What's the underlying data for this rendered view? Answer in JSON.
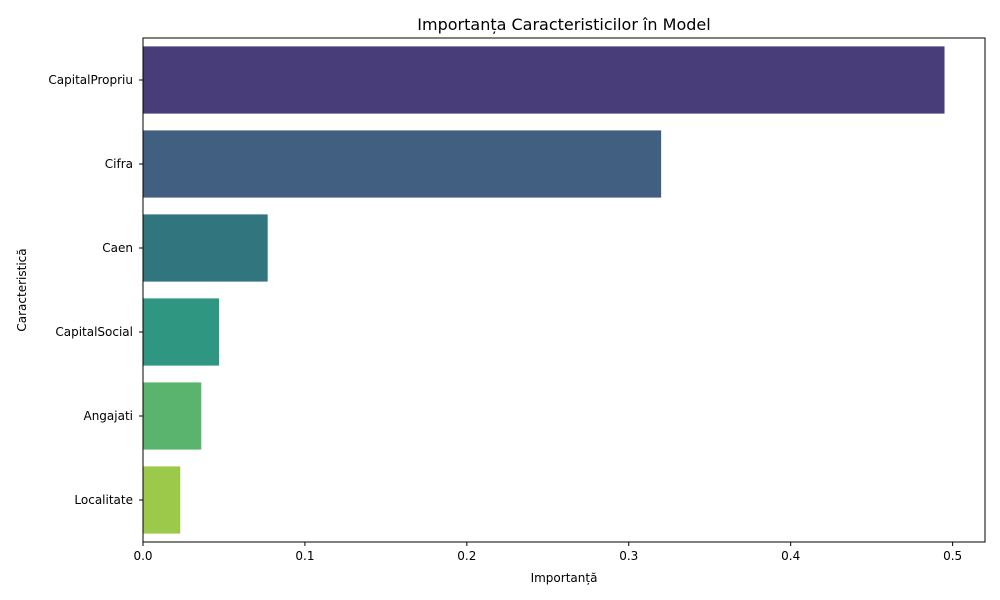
{
  "chart_data": {
    "type": "bar",
    "orientation": "horizontal",
    "title": "Importanța Caracteristicilor în Model",
    "xlabel": "Importanță",
    "ylabel": "Caracteristică",
    "xlim": [
      0,
      0.52
    ],
    "xticks": [
      0,
      0.1,
      0.2,
      0.3,
      0.4,
      0.5
    ],
    "xtick_labels": [
      "0.0",
      "0.1",
      "0.2",
      "0.3",
      "0.4",
      "0.5"
    ],
    "categories": [
      "CapitalPropriu",
      "Cifra",
      "Caen",
      "CapitalSocial",
      "Angajati",
      "Localitate"
    ],
    "values": [
      0.495,
      0.32,
      0.077,
      0.047,
      0.036,
      0.023
    ],
    "colors": [
      "#483d78",
      "#415f81",
      "#31767f",
      "#2e9681",
      "#5ab46d",
      "#9dc94a"
    ],
    "grid": false,
    "legend": "none"
  }
}
